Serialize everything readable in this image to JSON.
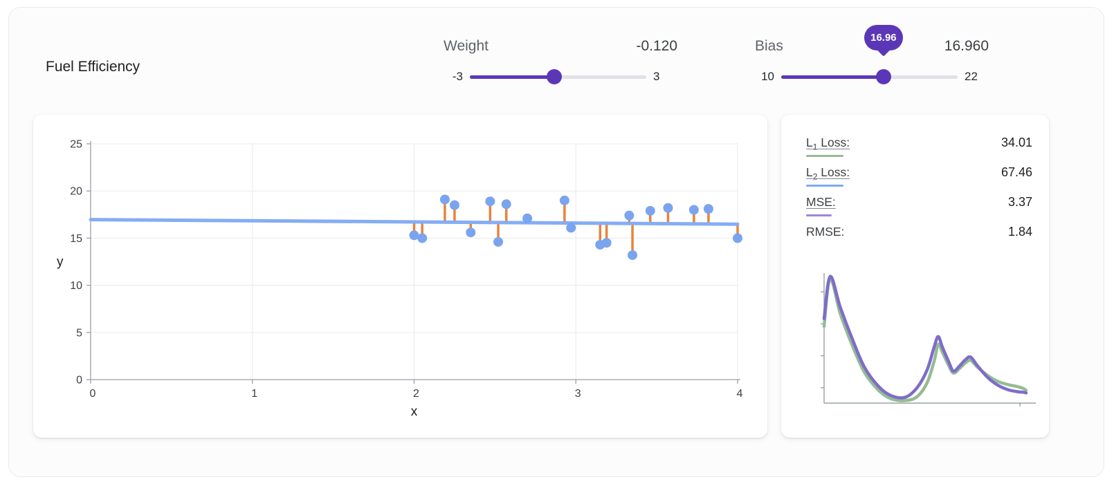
{
  "app": {
    "title": "Fuel Efficiency"
  },
  "sliders": {
    "weight": {
      "label": "Weight",
      "value_display": "-0.120",
      "value": -0.12,
      "min": -3,
      "max": 3,
      "min_label": "-3",
      "max_label": "3"
    },
    "bias": {
      "label": "Bias",
      "value_display": "16.960",
      "value": 16.96,
      "min": 10,
      "max": 22,
      "min_label": "10",
      "max_label": "22",
      "tooltip": "16.96"
    }
  },
  "metrics": [
    {
      "prefix": "L",
      "sub": "1",
      "rest": " Loss:",
      "value": "34.01",
      "underline_color": "#94bc94"
    },
    {
      "prefix": "L",
      "sub": "2",
      "rest": " Loss:",
      "value": "67.46",
      "underline_color": "#7baaf7"
    },
    {
      "prefix": "MSE:",
      "sub": "",
      "rest": "",
      "value": "3.37",
      "underline_color": "#9d86d9"
    },
    {
      "prefix": "RMSE:",
      "sub": "",
      "rest": "",
      "value": "1.84",
      "underline_color": ""
    }
  ],
  "colors": {
    "accent_purple": "#5b37b7",
    "track_gray": "#e2e0e8",
    "line": "#84adf4",
    "dot": "#7aa4ee",
    "residual": "#e8833a",
    "grid": "#e8eaed",
    "axis": "#9aa0a6",
    "tick": "#3c4043"
  },
  "chart_data": [
    {
      "type": "scatter",
      "title": "Fuel Efficiency",
      "xlabel": "x",
      "ylabel": "y",
      "xlim": [
        0,
        4
      ],
      "ylim": [
        0,
        25
      ],
      "xticks": [
        0,
        1,
        2,
        3,
        4
      ],
      "yticks": [
        0,
        5,
        10,
        15,
        20,
        25
      ],
      "grid": true,
      "model": {
        "weight": -0.12,
        "bias": 16.96
      },
      "points": [
        [
          2.0,
          15.3
        ],
        [
          2.05,
          15.0
        ],
        [
          2.19,
          19.1
        ],
        [
          2.25,
          18.5
        ],
        [
          2.35,
          15.6
        ],
        [
          2.47,
          18.9
        ],
        [
          2.52,
          14.6
        ],
        [
          2.57,
          18.6
        ],
        [
          2.7,
          17.1
        ],
        [
          2.93,
          19.0
        ],
        [
          2.97,
          16.1
        ],
        [
          3.15,
          14.3
        ],
        [
          3.19,
          14.5
        ],
        [
          3.33,
          17.4
        ],
        [
          3.35,
          13.2
        ],
        [
          3.46,
          17.9
        ],
        [
          3.57,
          18.2
        ],
        [
          3.73,
          18.0
        ],
        [
          3.82,
          18.1
        ],
        [
          4.0,
          15.0
        ]
      ]
    },
    {
      "type": "line",
      "title": "Loss history",
      "x_range": [
        0,
        1
      ],
      "y_axis_ticks": [
        0.12,
        0.37,
        0.62,
        0.87
      ],
      "x_axis_ticks": [
        0.97
      ],
      "series": [
        {
          "name": "L1 loss history",
          "color": "#94bc94",
          "points": [
            [
              0.0,
              0.6
            ],
            [
              0.03,
              0.97
            ],
            [
              0.08,
              0.7
            ],
            [
              0.14,
              0.45
            ],
            [
              0.2,
              0.24
            ],
            [
              0.27,
              0.1
            ],
            [
              0.33,
              0.035
            ],
            [
              0.4,
              0.02
            ],
            [
              0.46,
              0.05
            ],
            [
              0.51,
              0.16
            ],
            [
              0.545,
              0.33
            ],
            [
              0.565,
              0.46
            ],
            [
              0.585,
              0.4
            ],
            [
              0.615,
              0.3
            ],
            [
              0.64,
              0.235
            ],
            [
              0.67,
              0.27
            ],
            [
              0.7,
              0.315
            ],
            [
              0.725,
              0.335
            ],
            [
              0.76,
              0.28
            ],
            [
              0.81,
              0.215
            ],
            [
              0.86,
              0.17
            ],
            [
              0.91,
              0.145
            ],
            [
              0.955,
              0.13
            ],
            [
              0.985,
              0.115
            ],
            [
              1.0,
              0.1
            ]
          ]
        },
        {
          "name": "MSE loss history",
          "color": "#7f6cc9",
          "points": [
            [
              0.0,
              0.66
            ],
            [
              0.03,
              0.99
            ],
            [
              0.08,
              0.75
            ],
            [
              0.14,
              0.5
            ],
            [
              0.2,
              0.28
            ],
            [
              0.27,
              0.13
            ],
            [
              0.33,
              0.06
            ],
            [
              0.4,
              0.045
            ],
            [
              0.46,
              0.12
            ],
            [
              0.51,
              0.26
            ],
            [
              0.545,
              0.44
            ],
            [
              0.565,
              0.52
            ],
            [
              0.585,
              0.44
            ],
            [
              0.615,
              0.33
            ],
            [
              0.64,
              0.25
            ],
            [
              0.67,
              0.29
            ],
            [
              0.7,
              0.34
            ],
            [
              0.725,
              0.36
            ],
            [
              0.76,
              0.29
            ],
            [
              0.81,
              0.2
            ],
            [
              0.86,
              0.14
            ],
            [
              0.91,
              0.105
            ],
            [
              0.955,
              0.09
            ],
            [
              0.985,
              0.085
            ],
            [
              1.0,
              0.08
            ]
          ]
        }
      ]
    }
  ]
}
